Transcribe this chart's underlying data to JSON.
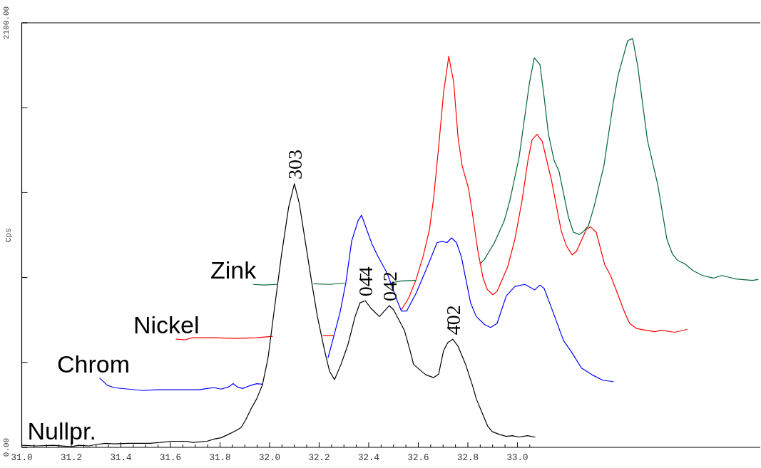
{
  "chart_data": {
    "type": "line",
    "xlim": [
      31.0,
      33.98
    ],
    "ylim": [
      0,
      2100
    ],
    "ylabel": "Cps",
    "xticks": [
      {
        "value": 31.0,
        "label": "31.0"
      },
      {
        "value": 31.05,
        "label": null
      },
      {
        "value": 31.1,
        "label": null
      },
      {
        "value": 31.15,
        "label": null
      },
      {
        "value": 31.2,
        "label": "31.2"
      },
      {
        "value": 31.25,
        "label": null
      },
      {
        "value": 31.3,
        "label": null
      },
      {
        "value": 31.35,
        "label": null
      },
      {
        "value": 31.4,
        "label": "31.4"
      },
      {
        "value": 31.45,
        "label": null
      },
      {
        "value": 31.5,
        "label": null
      },
      {
        "value": 31.55,
        "label": null
      },
      {
        "value": 31.6,
        "label": "31.6"
      },
      {
        "value": 31.65,
        "label": null
      },
      {
        "value": 31.7,
        "label": null
      },
      {
        "value": 31.75,
        "label": null
      },
      {
        "value": 31.8,
        "label": "31.8"
      },
      {
        "value": 31.85,
        "label": null
      },
      {
        "value": 31.9,
        "label": null
      },
      {
        "value": 31.95,
        "label": null
      },
      {
        "value": 32.0,
        "label": "32.0"
      },
      {
        "value": 32.05,
        "label": null
      },
      {
        "value": 32.1,
        "label": null
      },
      {
        "value": 32.15,
        "label": null
      },
      {
        "value": 32.2,
        "label": "32.2"
      },
      {
        "value": 32.25,
        "label": null
      },
      {
        "value": 32.3,
        "label": null
      },
      {
        "value": 32.35,
        "label": null
      },
      {
        "value": 32.4,
        "label": "32.4"
      },
      {
        "value": 32.45,
        "label": null
      },
      {
        "value": 32.5,
        "label": null
      },
      {
        "value": 32.55,
        "label": null
      },
      {
        "value": 32.6,
        "label": "32.6"
      },
      {
        "value": 32.65,
        "label": null
      },
      {
        "value": 32.7,
        "label": null
      },
      {
        "value": 32.75,
        "label": null
      },
      {
        "value": 32.8,
        "label": "32.8"
      },
      {
        "value": 32.85,
        "label": null
      },
      {
        "value": 32.9,
        "label": null
      },
      {
        "value": 32.95,
        "label": null
      },
      {
        "value": 33.0,
        "label": "33.0"
      },
      {
        "value": 33.05,
        "label": null
      }
    ],
    "yticks": [
      {
        "value": 0,
        "label": "0.00"
      },
      {
        "value": 420,
        "label": null
      },
      {
        "value": 840,
        "label": null
      },
      {
        "value": 1260,
        "label": null
      },
      {
        "value": 1680,
        "label": null
      },
      {
        "value": 2100,
        "label": "2100.00"
      }
    ],
    "grid": false,
    "marker": "none",
    "line_style": "solid",
    "annotations": [
      {
        "text": "303",
        "x": 32.1,
        "y": 1304
      },
      {
        "text": "04̄4",
        "x": 32.386,
        "y": 725
      },
      {
        "text": "042",
        "x": 32.483,
        "y": 701
      },
      {
        "text": "4̄02",
        "x": 32.739,
        "y": 535
      }
    ],
    "series": [
      {
        "name": "Zink",
        "color": "#006633",
        "x": [
          31.934,
          31.977,
          32.029,
          32.1,
          32.178,
          32.244,
          32.302,
          32.4,
          32.489,
          32.532,
          32.59,
          32.7,
          32.849,
          32.866,
          32.889,
          32.906,
          32.947,
          32.97,
          33.007,
          33.048,
          33.068,
          33.091,
          33.108,
          33.125,
          33.148,
          33.168,
          33.206,
          33.226,
          33.249,
          33.266,
          33.286,
          33.309,
          33.349,
          33.387,
          33.407,
          33.445,
          33.465,
          33.485,
          33.508,
          33.525,
          33.566,
          33.603,
          33.626,
          33.646,
          33.675,
          33.709,
          33.747,
          33.79,
          33.825,
          33.848,
          33.882,
          33.905,
          33.948,
          33.971
        ],
        "values": [
          806,
          803,
          806,
          null,
          809,
          806,
          813,
          null,
          813,
          823,
          826,
          null,
          908,
          928,
          975,
          1009,
          1121,
          1223,
          1436,
          1798,
          1927,
          1893,
          1731,
          1551,
          1419,
          1365,
          1138,
          1064,
          1053,
          1067,
          1094,
          1189,
          1392,
          1707,
          1843,
          2012,
          2022,
          1890,
          1673,
          1517,
          1301,
          1030,
          955,
          925,
          908,
          874,
          850,
          837,
          850,
          843,
          833,
          830,
          826,
          830
        ]
      },
      {
        "name": "Nickel",
        "color": "#ff0000",
        "x": [
          31.623,
          31.66,
          31.689,
          31.776,
          31.862,
          31.948,
          32.012,
          32.1,
          32.216,
          32.259,
          32.4,
          32.532,
          32.561,
          32.59,
          32.619,
          32.645,
          32.662,
          32.682,
          32.702,
          32.723,
          32.743,
          32.76,
          32.777,
          32.803,
          32.82,
          32.84,
          32.861,
          32.878,
          32.901,
          32.918,
          32.961,
          32.99,
          33.019,
          33.042,
          33.059,
          33.079,
          33.1,
          33.137,
          33.177,
          33.198,
          33.221,
          33.238,
          33.278,
          33.295,
          33.318,
          33.353,
          33.376,
          33.436,
          33.453,
          33.479,
          33.502,
          33.554,
          33.58,
          33.635,
          33.684
        ],
        "values": [
          535,
          532,
          542,
          542,
          539,
          542,
          549,
          null,
          552,
          552,
          null,
          681,
          738,
          826,
          942,
          1077,
          1233,
          1484,
          1754,
          1934,
          1805,
          1538,
          1392,
          1280,
          1145,
          975,
          840,
          782,
          755,
          772,
          894,
          1030,
          1223,
          1416,
          1521,
          1548,
          1514,
          1324,
          1070,
          996,
          952,
          969,
          1077,
          1091,
          1064,
          901,
          850,
          657,
          613,
          589,
          583,
          572,
          579,
          569,
          583
        ]
      },
      {
        "name": "Chrom",
        "color": "#0000ff",
        "x": [
          31.315,
          31.344,
          31.373,
          31.43,
          31.488,
          31.545,
          31.632,
          31.718,
          31.747,
          31.776,
          31.804,
          31.833,
          31.853,
          31.871,
          31.891,
          31.92,
          31.948,
          31.971,
          32.1,
          32.236,
          32.256,
          32.285,
          32.308,
          32.331,
          32.357,
          32.371,
          32.389,
          32.414,
          32.437,
          32.46,
          32.475,
          32.515,
          32.532,
          32.553,
          32.59,
          32.63,
          32.676,
          32.696,
          32.716,
          32.734,
          32.754,
          32.774,
          32.811,
          32.834,
          32.869,
          32.892,
          32.918,
          32.955,
          32.99,
          33.03,
          33.07,
          33.091,
          33.108,
          33.137,
          33.186,
          33.215,
          33.258,
          33.301,
          33.344,
          33.387
        ],
        "values": [
          342,
          308,
          295,
          288,
          281,
          285,
          285,
          285,
          291,
          295,
          288,
          298,
          315,
          298,
          291,
          305,
          315,
          312,
          null,
          444,
          535,
          671,
          816,
          1019,
          1121,
          1148,
          1087,
          1003,
          945,
          894,
          860,
          725,
          674,
          674,
          759,
          874,
          1013,
          1019,
          1013,
          1036,
          1013,
          942,
          715,
          647,
          606,
          593,
          613,
          749,
          796,
          806,
          779,
          803,
          786,
          691,
          528,
          478,
          393,
          359,
          332,
          325
        ]
      },
      {
        "name": "Nullpr.",
        "color": "#000000",
        "x": [
          31.0,
          31.056,
          31.128,
          31.2,
          31.229,
          31.272,
          31.301,
          31.338,
          31.373,
          31.43,
          31.517,
          31.56,
          31.603,
          31.666,
          31.689,
          31.747,
          31.776,
          31.804,
          31.833,
          31.862,
          31.885,
          31.905,
          31.925,
          31.948,
          31.971,
          31.994,
          32.019,
          32.048,
          32.077,
          32.1,
          32.12,
          32.144,
          32.17,
          32.193,
          32.222,
          32.242,
          32.262,
          32.288,
          32.317,
          32.345,
          32.365,
          32.386,
          32.409,
          32.443,
          32.483,
          32.5,
          32.544,
          32.567,
          32.581,
          32.63,
          32.662,
          32.682,
          32.702,
          32.719,
          32.739,
          32.76,
          32.791,
          32.82,
          32.834,
          32.857,
          32.88,
          32.898,
          32.927,
          32.955,
          32.979,
          33.007,
          33.041,
          33.07
        ],
        "values": [
          10,
          7,
          10,
          3,
          10,
          7,
          14,
          20,
          17,
          20,
          20,
          24,
          30,
          30,
          24,
          30,
          41,
          47,
          64,
          81,
          98,
          139,
          190,
          240,
          308,
          444,
          681,
          952,
          1189,
          1304,
          1206,
          1019,
          816,
          647,
          478,
          376,
          335,
          410,
          511,
          647,
          715,
          725,
          688,
          647,
          701,
          681,
          579,
          478,
          410,
          359,
          345,
          362,
          478,
          518,
          535,
          501,
          410,
          301,
          240,
          173,
          105,
          78,
          64,
          54,
          58,
          51,
          58,
          51
        ]
      }
    ]
  }
}
